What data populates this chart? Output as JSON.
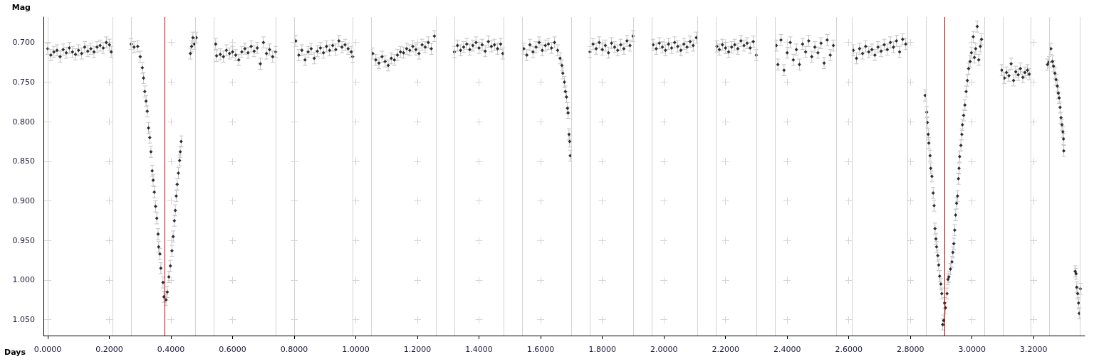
{
  "chart_data": {
    "type": "scatter",
    "xlabel": "Days",
    "ylabel": "Mag",
    "color": "#000000",
    "marker": "diamond",
    "grid": true,
    "xlim": [
      -0.014,
      3.366
    ],
    "ylim": [
      1.07,
      0.668
    ],
    "xticks": [
      {
        "value": 0,
        "label": "0.0000"
      },
      {
        "value": 0.2,
        "label": "0.2000"
      },
      {
        "value": 0.4,
        "label": "0.4000"
      },
      {
        "value": 0.6,
        "label": "0.6000"
      },
      {
        "value": 0.8,
        "label": "0.8000"
      },
      {
        "value": 1.0,
        "label": "1.0000"
      },
      {
        "value": 1.2,
        "label": "1.2000"
      },
      {
        "value": 1.4,
        "label": "1.4000"
      },
      {
        "value": 1.6,
        "label": "1.6000"
      },
      {
        "value": 1.8,
        "label": "1.8000"
      },
      {
        "value": 2.0,
        "label": "2.0000"
      },
      {
        "value": 2.2,
        "label": "2.2000"
      },
      {
        "value": 2.4,
        "label": "2.4000"
      },
      {
        "value": 2.6,
        "label": "2.6000"
      },
      {
        "value": 2.8,
        "label": "2.8000"
      },
      {
        "value": 3.0,
        "label": "3.0000"
      },
      {
        "value": 3.2,
        "label": "3.2000"
      }
    ],
    "yticks": [
      {
        "value": 0.7,
        "label": "0.700"
      },
      {
        "value": 0.75,
        "label": "0.750"
      },
      {
        "value": 0.8,
        "label": "0.800"
      },
      {
        "value": 0.85,
        "label": "0.850"
      },
      {
        "value": 0.9,
        "label": "0.900"
      },
      {
        "value": 0.95,
        "label": "0.950"
      },
      {
        "value": 1.0,
        "label": "1.000"
      },
      {
        "value": 1.05,
        "label": "1.050"
      }
    ],
    "series": [
      {
        "x": [
          0.0,
          0.01,
          0.02,
          0.03,
          0.04,
          0.05,
          0.06,
          0.07,
          0.08,
          0.09,
          0.1,
          0.11,
          0.12,
          0.13,
          0.14,
          0.15,
          0.16,
          0.17,
          0.18,
          0.19,
          0.2,
          0.206
        ],
        "values": [
          0.708,
          0.716,
          0.712,
          0.71,
          0.718,
          0.709,
          0.713,
          0.707,
          0.712,
          0.715,
          0.71,
          0.714,
          0.706,
          0.711,
          0.708,
          0.712,
          0.706,
          0.704,
          0.707,
          0.7,
          0.703,
          0.712
        ],
        "errors": [
          0.007,
          0.007,
          0.007,
          0.007,
          0.007,
          0.007,
          0.007,
          0.007,
          0.007,
          0.007,
          0.007,
          0.007,
          0.007,
          0.007,
          0.007,
          0.007,
          0.007,
          0.007,
          0.007,
          0.007,
          0.007,
          0.007
        ]
      },
      {
        "x": [
          0.271,
          0.28,
          0.292,
          0.3,
          0.307,
          0.311,
          0.315,
          0.319,
          0.323,
          0.327,
          0.331,
          0.335,
          0.339,
          0.342,
          0.346,
          0.35,
          0.354,
          0.358,
          0.36,
          0.364,
          0.367,
          0.374,
          0.377,
          0.384,
          0.388,
          0.393,
          0.398,
          0.403,
          0.407,
          0.411,
          0.414,
          0.417,
          0.42,
          0.424,
          0.428,
          0.43,
          0.433,
          0.463,
          0.467,
          0.471,
          0.476,
          0.482
        ],
        "values": [
          0.702,
          0.706,
          0.705,
          0.718,
          0.732,
          0.745,
          0.762,
          0.774,
          0.787,
          0.808,
          0.82,
          0.838,
          0.862,
          0.874,
          0.889,
          0.907,
          0.922,
          0.942,
          0.958,
          0.967,
          0.985,
          1.003,
          1.021,
          1.025,
          1.015,
          0.996,
          0.982,
          0.963,
          0.945,
          0.925,
          0.912,
          0.894,
          0.879,
          0.865,
          0.849,
          0.838,
          0.825,
          0.714,
          0.705,
          0.694,
          0.702,
          0.694
        ],
        "errors": [
          0.007,
          0.007,
          0.007,
          0.007,
          0.007,
          0.007,
          0.007,
          0.007,
          0.007,
          0.007,
          0.007,
          0.007,
          0.007,
          0.007,
          0.007,
          0.007,
          0.007,
          0.007,
          0.007,
          0.007,
          0.007,
          0.007,
          0.007,
          0.007,
          0.007,
          0.007,
          0.007,
          0.007,
          0.007,
          0.007,
          0.007,
          0.007,
          0.007,
          0.007,
          0.007,
          0.007,
          0.007,
          0.007,
          0.007,
          0.007,
          0.007,
          0.007
        ]
      },
      {
        "x": [
          0.545,
          0.548,
          0.56,
          0.57,
          0.58,
          0.59,
          0.6,
          0.61,
          0.62,
          0.63,
          0.64,
          0.65,
          0.66,
          0.67,
          0.68,
          0.69,
          0.7,
          0.71,
          0.72,
          0.73,
          0.74
        ],
        "values": [
          0.702,
          0.717,
          0.715,
          0.718,
          0.71,
          0.714,
          0.712,
          0.716,
          0.722,
          0.712,
          0.708,
          0.713,
          0.705,
          0.711,
          0.707,
          0.727,
          0.7,
          0.714,
          0.709,
          0.718,
          0.712
        ],
        "errors": [
          0.007,
          0.007,
          0.007,
          0.007,
          0.007,
          0.007,
          0.007,
          0.007,
          0.007,
          0.007,
          0.007,
          0.007,
          0.007,
          0.007,
          0.007,
          0.007,
          0.007,
          0.007,
          0.007,
          0.007,
          0.007
        ]
      },
      {
        "x": [
          0.805,
          0.815,
          0.825,
          0.835,
          0.845,
          0.855,
          0.865,
          0.875,
          0.885,
          0.895,
          0.905,
          0.915,
          0.925,
          0.935,
          0.945,
          0.955,
          0.965,
          0.975,
          0.985,
          0.99
        ],
        "values": [
          0.698,
          0.716,
          0.71,
          0.722,
          0.712,
          0.708,
          0.72,
          0.711,
          0.707,
          0.713,
          0.705,
          0.71,
          0.704,
          0.709,
          0.698,
          0.706,
          0.703,
          0.708,
          0.712,
          0.718
        ],
        "errors": [
          0.007,
          0.007,
          0.007,
          0.007,
          0.007,
          0.007,
          0.007,
          0.007,
          0.007,
          0.007,
          0.007,
          0.007,
          0.007,
          0.007,
          0.007,
          0.007,
          0.007,
          0.007,
          0.007,
          0.007
        ]
      },
      {
        "x": [
          1.055,
          1.065,
          1.075,
          1.085,
          1.095,
          1.105,
          1.115,
          1.125,
          1.135,
          1.145,
          1.155,
          1.165,
          1.175,
          1.185,
          1.195,
          1.205,
          1.215,
          1.225,
          1.235,
          1.245,
          1.255
        ],
        "values": [
          0.714,
          0.722,
          0.726,
          0.718,
          0.724,
          0.729,
          0.72,
          0.722,
          0.716,
          0.712,
          0.713,
          0.708,
          0.71,
          0.705,
          0.709,
          0.714,
          0.703,
          0.706,
          0.7,
          0.708,
          0.692
        ],
        "errors": [
          0.007,
          0.007,
          0.007,
          0.007,
          0.007,
          0.007,
          0.007,
          0.007,
          0.007,
          0.007,
          0.007,
          0.007,
          0.007,
          0.007,
          0.007,
          0.007,
          0.007,
          0.007,
          0.007,
          0.007,
          0.007
        ]
      },
      {
        "x": [
          1.32,
          1.33,
          1.34,
          1.35,
          1.36,
          1.37,
          1.38,
          1.39,
          1.4,
          1.41,
          1.42,
          1.43,
          1.44,
          1.45,
          1.46,
          1.47,
          1.477
        ],
        "values": [
          0.712,
          0.704,
          0.71,
          0.706,
          0.702,
          0.709,
          0.704,
          0.7,
          0.707,
          0.703,
          0.711,
          0.699,
          0.705,
          0.703,
          0.708,
          0.702,
          0.714
        ],
        "errors": [
          0.007,
          0.007,
          0.007,
          0.007,
          0.007,
          0.007,
          0.007,
          0.007,
          0.007,
          0.007,
          0.007,
          0.007,
          0.007,
          0.007,
          0.007,
          0.007,
          0.007
        ]
      },
      {
        "x": [
          1.545,
          1.555,
          1.565,
          1.575,
          1.585,
          1.595,
          1.605,
          1.615,
          1.625,
          1.635,
          1.645,
          1.655,
          1.663,
          1.669,
          1.672,
          1.677,
          1.68,
          1.684,
          1.687,
          1.689,
          1.692,
          1.694,
          1.696
        ],
        "values": [
          0.708,
          0.716,
          0.703,
          0.712,
          0.706,
          0.7,
          0.71,
          0.704,
          0.702,
          0.707,
          0.7,
          0.71,
          0.72,
          0.729,
          0.739,
          0.75,
          0.762,
          0.769,
          0.783,
          0.789,
          0.816,
          0.825,
          0.843
        ],
        "errors": [
          0.007,
          0.007,
          0.007,
          0.007,
          0.007,
          0.007,
          0.007,
          0.007,
          0.007,
          0.007,
          0.007,
          0.007,
          0.007,
          0.007,
          0.007,
          0.007,
          0.007,
          0.007,
          0.007,
          0.007,
          0.007,
          0.007,
          0.007
        ]
      },
      {
        "x": [
          1.76,
          1.77,
          1.78,
          1.79,
          1.8,
          1.81,
          1.82,
          1.83,
          1.84,
          1.85,
          1.86,
          1.87,
          1.88,
          1.89,
          1.9
        ],
        "values": [
          0.712,
          0.702,
          0.708,
          0.7,
          0.709,
          0.704,
          0.713,
          0.701,
          0.706,
          0.71,
          0.703,
          0.708,
          0.698,
          0.704,
          0.692
        ],
        "errors": [
          0.007,
          0.007,
          0.007,
          0.007,
          0.007,
          0.007,
          0.007,
          0.007,
          0.007,
          0.007,
          0.007,
          0.007,
          0.007,
          0.007,
          0.007
        ]
      },
      {
        "x": [
          1.965,
          1.975,
          1.985,
          1.995,
          2.005,
          2.015,
          2.025,
          2.035,
          2.045,
          2.055,
          2.065,
          2.075,
          2.085,
          2.095,
          2.105
        ],
        "values": [
          0.703,
          0.708,
          0.701,
          0.706,
          0.71,
          0.702,
          0.707,
          0.7,
          0.705,
          0.71,
          0.702,
          0.706,
          0.699,
          0.704,
          0.694
        ],
        "errors": [
          0.007,
          0.007,
          0.007,
          0.007,
          0.007,
          0.007,
          0.007,
          0.007,
          0.007,
          0.007,
          0.007,
          0.007,
          0.007,
          0.007,
          0.007
        ]
      },
      {
        "x": [
          2.172,
          2.18,
          2.19,
          2.2,
          2.21,
          2.22,
          2.23,
          2.24,
          2.25,
          2.26,
          2.27,
          2.28,
          2.29,
          2.3
        ],
        "values": [
          0.705,
          0.709,
          0.703,
          0.707,
          0.712,
          0.706,
          0.703,
          0.708,
          0.698,
          0.704,
          0.701,
          0.707,
          0.699,
          0.716
        ],
        "errors": [
          0.007,
          0.007,
          0.007,
          0.007,
          0.007,
          0.007,
          0.007,
          0.007,
          0.007,
          0.007,
          0.007,
          0.007,
          0.007,
          0.007
        ]
      },
      {
        "x": [
          2.365,
          2.37,
          2.38,
          2.39,
          2.4,
          2.41,
          2.42,
          2.43,
          2.44,
          2.45,
          2.46,
          2.47,
          2.48,
          2.49,
          2.5,
          2.51,
          2.52,
          2.53,
          2.54,
          2.55
        ],
        "values": [
          0.704,
          0.728,
          0.697,
          0.735,
          0.713,
          0.7,
          0.722,
          0.709,
          0.728,
          0.702,
          0.712,
          0.698,
          0.718,
          0.706,
          0.713,
          0.701,
          0.726,
          0.697,
          0.716,
          0.704
        ],
        "errors": [
          0.007,
          0.007,
          0.007,
          0.007,
          0.007,
          0.007,
          0.007,
          0.007,
          0.007,
          0.007,
          0.007,
          0.007,
          0.007,
          0.007,
          0.007,
          0.007,
          0.007,
          0.007,
          0.007,
          0.007
        ]
      },
      {
        "x": [
          2.615,
          2.625,
          2.635,
          2.645,
          2.655,
          2.665,
          2.675,
          2.685,
          2.695,
          2.705,
          2.715,
          2.725,
          2.735,
          2.745,
          2.755,
          2.765,
          2.775,
          2.785
        ],
        "values": [
          0.71,
          0.72,
          0.708,
          0.714,
          0.705,
          0.712,
          0.709,
          0.716,
          0.706,
          0.711,
          0.703,
          0.709,
          0.7,
          0.706,
          0.698,
          0.712,
          0.696,
          0.702
        ],
        "errors": [
          0.007,
          0.007,
          0.007,
          0.007,
          0.007,
          0.007,
          0.007,
          0.007,
          0.007,
          0.007,
          0.007,
          0.007,
          0.007,
          0.007,
          0.007,
          0.007,
          0.007,
          0.007
        ]
      },
      {
        "x": [
          2.848,
          2.853,
          2.855,
          2.858,
          2.86,
          2.864,
          2.866,
          2.87,
          2.874,
          2.877,
          2.88,
          2.883,
          2.885,
          2.889,
          2.892,
          2.895,
          2.899,
          2.902,
          2.905,
          2.908,
          2.911,
          2.914,
          2.919,
          2.922,
          2.925,
          2.93,
          2.935,
          2.938,
          2.941,
          2.944,
          2.947,
          2.95,
          2.953,
          2.956,
          2.958,
          2.96,
          2.964,
          2.967,
          2.969,
          2.973,
          2.977,
          2.981,
          2.985,
          2.989,
          2.994,
          2.998,
          3.004,
          3.008,
          3.012,
          3.017,
          3.022,
          3.027,
          3.031
        ],
        "values": [
          0.767,
          0.788,
          0.801,
          0.816,
          0.827,
          0.843,
          0.859,
          0.869,
          0.89,
          0.906,
          0.935,
          0.948,
          0.958,
          0.969,
          0.981,
          0.995,
          1.005,
          1.017,
          1.056,
          1.051,
          1.029,
          1.035,
          1.017,
          0.999,
          0.996,
          0.986,
          0.977,
          0.965,
          0.954,
          0.937,
          0.918,
          0.903,
          0.894,
          0.872,
          0.859,
          0.844,
          0.83,
          0.816,
          0.804,
          0.792,
          0.779,
          0.762,
          0.748,
          0.733,
          0.724,
          0.713,
          0.693,
          0.719,
          0.708,
          0.68,
          0.722,
          0.705,
          0.696
        ],
        "errors": [
          0.007,
          0.007,
          0.007,
          0.007,
          0.007,
          0.007,
          0.007,
          0.007,
          0.007,
          0.007,
          0.007,
          0.007,
          0.007,
          0.007,
          0.007,
          0.007,
          0.007,
          0.007,
          0.007,
          0.007,
          0.007,
          0.007,
          0.007,
          0.007,
          0.007,
          0.007,
          0.007,
          0.007,
          0.007,
          0.007,
          0.007,
          0.007,
          0.007,
          0.007,
          0.007,
          0.007,
          0.007,
          0.007,
          0.007,
          0.007,
          0.007,
          0.007,
          0.007,
          0.007,
          0.007,
          0.007,
          0.007,
          0.007,
          0.007,
          0.007,
          0.007,
          0.007,
          0.007
        ]
      },
      {
        "x": [
          3.097,
          3.105,
          3.112,
          3.12,
          3.127,
          3.135,
          3.142,
          3.15,
          3.157,
          3.165,
          3.172,
          3.18,
          3.186
        ],
        "values": [
          0.735,
          0.745,
          0.738,
          0.742,
          0.727,
          0.748,
          0.737,
          0.741,
          0.733,
          0.744,
          0.738,
          0.735,
          0.74
        ],
        "errors": [
          0.007,
          0.007,
          0.007,
          0.007,
          0.007,
          0.007,
          0.007,
          0.007,
          0.007,
          0.007,
          0.007,
          0.007,
          0.007
        ]
      },
      {
        "x": [
          3.245,
          3.25,
          3.256,
          3.261,
          3.265,
          3.269,
          3.273,
          3.277,
          3.28,
          3.283,
          3.286,
          3.289,
          3.292,
          3.295,
          3.297,
          3.298,
          3.335,
          3.338,
          3.34,
          3.343,
          3.346,
          3.348,
          3.352
        ],
        "values": [
          0.728,
          0.725,
          0.708,
          0.724,
          0.73,
          0.739,
          0.747,
          0.755,
          0.764,
          0.77,
          0.782,
          0.795,
          0.804,
          0.813,
          0.822,
          0.837,
          0.989,
          0.992,
          1.009,
          1.017,
          1.029,
          1.042,
          1.011
        ],
        "errors": [
          0.007,
          0.007,
          0.007,
          0.007,
          0.007,
          0.007,
          0.007,
          0.007,
          0.007,
          0.007,
          0.007,
          0.007,
          0.007,
          0.007,
          0.007,
          0.007,
          0.007,
          0.007,
          0.007,
          0.007,
          0.007,
          0.007,
          0.007
        ]
      }
    ],
    "ref_lines": [
      {
        "axis": "x",
        "value": 0.0,
        "color": "#d3d3d3"
      },
      {
        "axis": "x",
        "value": 0.208,
        "color": "#d3d3d3"
      },
      {
        "axis": "x",
        "value": 0.27,
        "color": "#d3d3d3"
      },
      {
        "axis": "x",
        "value": 0.483,
        "color": "#d3d3d3"
      },
      {
        "axis": "x",
        "value": 0.544,
        "color": "#d3d3d3"
      },
      {
        "axis": "x",
        "value": 0.743,
        "color": "#d3d3d3"
      },
      {
        "axis": "x",
        "value": 0.803,
        "color": "#d3d3d3"
      },
      {
        "axis": "x",
        "value": 0.994,
        "color": "#d3d3d3"
      },
      {
        "axis": "x",
        "value": 1.053,
        "color": "#d3d3d3"
      },
      {
        "axis": "x",
        "value": 1.258,
        "color": "#d3d3d3"
      },
      {
        "axis": "x",
        "value": 1.318,
        "color": "#d3d3d3"
      },
      {
        "axis": "x",
        "value": 1.479,
        "color": "#d3d3d3"
      },
      {
        "axis": "x",
        "value": 1.54,
        "color": "#d3d3d3"
      },
      {
        "axis": "x",
        "value": 1.697,
        "color": "#d3d3d3"
      },
      {
        "axis": "x",
        "value": 1.757,
        "color": "#d3d3d3"
      },
      {
        "axis": "x",
        "value": 1.902,
        "color": "#d3d3d3"
      },
      {
        "axis": "x",
        "value": 1.963,
        "color": "#d3d3d3"
      },
      {
        "axis": "x",
        "value": 2.11,
        "color": "#d3d3d3"
      },
      {
        "axis": "x",
        "value": 2.17,
        "color": "#d3d3d3"
      },
      {
        "axis": "x",
        "value": 2.303,
        "color": "#d3d3d3"
      },
      {
        "axis": "x",
        "value": 2.362,
        "color": "#d3d3d3"
      },
      {
        "axis": "x",
        "value": 2.556,
        "color": "#d3d3d3"
      },
      {
        "axis": "x",
        "value": 2.614,
        "color": "#d3d3d3"
      },
      {
        "axis": "x",
        "value": 2.788,
        "color": "#d3d3d3"
      },
      {
        "axis": "x",
        "value": 2.848,
        "color": "#d3d3d3"
      },
      {
        "axis": "x",
        "value": 3.035,
        "color": "#d3d3d3"
      },
      {
        "axis": "x",
        "value": 3.095,
        "color": "#d3d3d3"
      },
      {
        "axis": "x",
        "value": 3.188,
        "color": "#d3d3d3"
      },
      {
        "axis": "x",
        "value": 3.245,
        "color": "#d3d3d3"
      },
      {
        "axis": "x",
        "value": 3.352,
        "color": "#d3d3d3"
      },
      {
        "axis": "x",
        "value": 0.381,
        "color": "#cc0000"
      },
      {
        "axis": "x",
        "value": 2.914,
        "color": "#cc0000"
      }
    ]
  }
}
